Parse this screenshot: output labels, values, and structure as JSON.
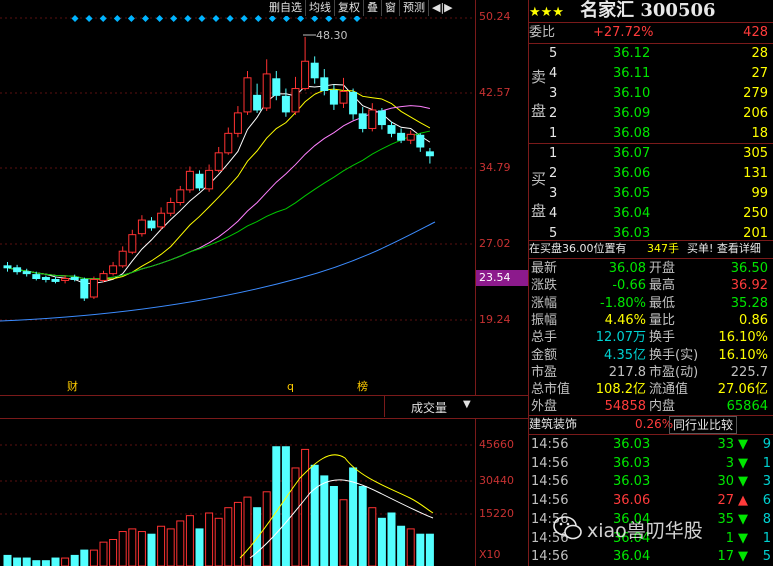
{
  "toolbar": {
    "buttons": [
      "删自选",
      "均线",
      "复权",
      "叠",
      "窗",
      "预测"
    ],
    "arrows": "◀|▶"
  },
  "kchart": {
    "price_labels": [
      "50.24",
      "42.57",
      "34.79",
      "27.02",
      "23.54",
      "19.24"
    ],
    "high_annotation": "48.30",
    "event_markers": [
      "财",
      "q",
      "榜"
    ]
  },
  "volume": {
    "indicator_label": "成交量",
    "labels": [
      "45660",
      "30440",
      "15220"
    ],
    "unit": "X10"
  },
  "stock": {
    "stars": "★★★",
    "name_code": "名家汇 300506"
  },
  "weibi": {
    "label": "委比",
    "value": "+27.72%",
    "diff": "428"
  },
  "sell_label": [
    "卖",
    "盘"
  ],
  "buy_label": [
    "买",
    "盘"
  ],
  "sell": [
    {
      "level": "5",
      "price": "36.12",
      "vol": "28"
    },
    {
      "level": "4",
      "price": "36.11",
      "vol": "27"
    },
    {
      "level": "3",
      "price": "36.10",
      "vol": "279"
    },
    {
      "level": "2",
      "price": "36.09",
      "vol": "206"
    },
    {
      "level": "1",
      "price": "36.08",
      "vol": "18"
    }
  ],
  "buy": [
    {
      "level": "1",
      "price": "36.07",
      "vol": "305"
    },
    {
      "level": "2",
      "price": "36.06",
      "vol": "131"
    },
    {
      "level": "3",
      "price": "36.05",
      "vol": "99"
    },
    {
      "level": "4",
      "price": "36.04",
      "vol": "250"
    },
    {
      "level": "5",
      "price": "36.03",
      "vol": "201"
    }
  ],
  "notice": {
    "text": "在买盘36.00位置有",
    "vol": "347手",
    "link": "买单! 查看详细"
  },
  "stats": [
    {
      "l1": "最新",
      "v1": "36.08",
      "c1": "green",
      "l2": "开盘",
      "v2": "36.50",
      "c2": "green"
    },
    {
      "l1": "涨跌",
      "v1": "-0.66",
      "c1": "green",
      "l2": "最高",
      "v2": "36.92",
      "c2": "red"
    },
    {
      "l1": "涨幅",
      "v1": "-1.80%",
      "c1": "green",
      "l2": "最低",
      "v2": "35.28",
      "c2": "green"
    },
    {
      "l1": "振幅",
      "v1": "4.46%",
      "c1": "yellow",
      "l2": "量比",
      "v2": "0.86",
      "c2": "yellow"
    },
    {
      "l1": "总手",
      "v1": "12.07万",
      "c1": "cyan",
      "l2": "换手",
      "v2": "16.10%",
      "c2": "yellow"
    },
    {
      "l1": "金额",
      "v1": "4.35亿",
      "c1": "cyan",
      "l2": "换手(实)",
      "v2": "16.10%",
      "c2": "yellow"
    },
    {
      "l1": "市盈",
      "v1": "217.8",
      "c1": "gray",
      "l2": "市盈(动)",
      "v2": "225.7",
      "c2": "gray"
    },
    {
      "l1": "总市值",
      "v1": "108.2亿",
      "c1": "yellow",
      "l2": "流通值",
      "v2": "27.06亿",
      "c2": "yellow"
    },
    {
      "l1": "外盘",
      "v1": "54858",
      "c1": "red",
      "l2": "内盘",
      "v2": "65864",
      "c2": "green"
    }
  ],
  "sector": {
    "name": "建筑装饰",
    "pct": "0.26%",
    "compare": "同行业比较"
  },
  "ticks": [
    {
      "time": "14:56",
      "price": "36.03",
      "vol": "33",
      "dir": "down",
      "n": "9"
    },
    {
      "time": "14:56",
      "price": "36.03",
      "vol": "3",
      "dir": "down",
      "n": "1"
    },
    {
      "time": "14:56",
      "price": "36.03",
      "vol": "30",
      "dir": "down",
      "n": "3"
    },
    {
      "time": "14:56",
      "price": "36.06",
      "vol": "27",
      "dir": "up",
      "n": "6"
    },
    {
      "time": "14:56",
      "price": "36.04",
      "vol": "35",
      "dir": "down",
      "n": "8"
    },
    {
      "time": "14:56",
      "price": "36.04",
      "vol": "1",
      "dir": "down",
      "n": "1"
    },
    {
      "time": "14:56",
      "price": "36.04",
      "vol": "17",
      "dir": "down",
      "n": "5"
    }
  ],
  "watermark": "xiao兽叨华股",
  "colors": {
    "up": "#ff3232",
    "down": "#54ffff",
    "grid": "#7a1a1a",
    "ma5": "#ffffff",
    "ma10": "#ffff00",
    "ma20": "#ff80ff",
    "ma30": "#00c800",
    "ma60": "#3c8cff"
  }
}
